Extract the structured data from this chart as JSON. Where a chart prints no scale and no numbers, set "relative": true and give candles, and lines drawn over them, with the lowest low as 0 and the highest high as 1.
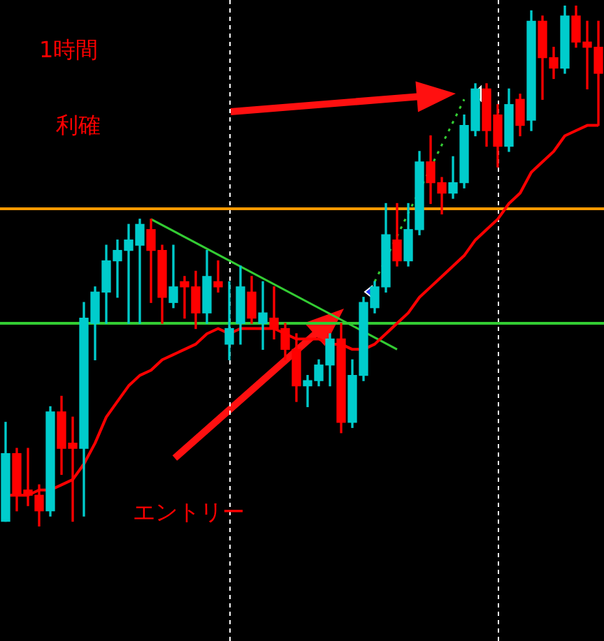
{
  "chart_data": {
    "type": "candlestick",
    "relative": true,
    "grid": false,
    "legend": false,
    "categories": [
      null,
      null,
      null,
      null,
      null,
      null,
      null,
      null,
      null,
      null,
      null,
      null,
      null,
      null,
      null,
      null,
      null,
      null,
      null,
      null,
      null,
      null,
      null,
      null,
      null,
      null,
      null,
      null,
      null,
      null,
      null,
      null,
      null,
      null,
      null,
      null,
      null,
      null,
      null,
      null,
      null,
      null,
      null,
      null,
      null,
      null,
      null,
      null,
      null,
      null,
      null,
      null,
      null,
      null
    ],
    "ohlc": [
      [
        0.01,
        0.2,
        0.01,
        0.14
      ],
      [
        0.14,
        0.15,
        0.03,
        0.06
      ],
      [
        0.07,
        0.15,
        0.04,
        0.06
      ],
      [
        0.06,
        0.08,
        0,
        0.03
      ],
      [
        0.03,
        0.23,
        0.02,
        0.22
      ],
      [
        0.22,
        0.25,
        0.1,
        0.15
      ],
      [
        0.16,
        0.21,
        0.01,
        0.15
      ],
      [
        0.15,
        0.43,
        0.02,
        0.4
      ],
      [
        0.39,
        0.46,
        0.32,
        0.45
      ],
      [
        0.45,
        0.54,
        0.39,
        0.51
      ],
      [
        0.51,
        0.55,
        0.44,
        0.53
      ],
      [
        0.53,
        0.58,
        0.39,
        0.55
      ],
      [
        0.54,
        0.59,
        0.39,
        0.58
      ],
      [
        0.57,
        0.59,
        0.43,
        0.53
      ],
      [
        0.53,
        0.54,
        0.39,
        0.44
      ],
      [
        0.43,
        0.54,
        0.42,
        0.46
      ],
      [
        0.47,
        0.48,
        0.4,
        0.46
      ],
      [
        0.46,
        0.49,
        0.38,
        0.41
      ],
      [
        0.41,
        0.53,
        0.39,
        0.48
      ],
      [
        0.47,
        0.51,
        0.45,
        0.46
      ],
      [
        0.35,
        0.47,
        0.32,
        0.38
      ],
      [
        0.39,
        0.5,
        0.35,
        0.46
      ],
      [
        0.45,
        0.48,
        0.39,
        0.4
      ],
      [
        0.39,
        0.47,
        0.34,
        0.41
      ],
      [
        0.4,
        0.46,
        0.36,
        0.38
      ],
      [
        0.38,
        0.39,
        0.32,
        0.34
      ],
      [
        0.34,
        0.37,
        0.24,
        0.27
      ],
      [
        0.27,
        0.29,
        0.23,
        0.28
      ],
      [
        0.28,
        0.32,
        0.27,
        0.31
      ],
      [
        0.31,
        0.37,
        0.27,
        0.36
      ],
      [
        0.36,
        0.39,
        0.18,
        0.2
      ],
      [
        0.2,
        0.32,
        0.19,
        0.29
      ],
      [
        0.29,
        0.44,
        0.28,
        0.43
      ],
      [
        0.42,
        0.47,
        0.41,
        0.46
      ],
      [
        0.46,
        0.62,
        0.45,
        0.56
      ],
      [
        0.55,
        0.62,
        0.5,
        0.51
      ],
      [
        0.51,
        0.62,
        0.5,
        0.57
      ],
      [
        0.57,
        0.72,
        0.56,
        0.7
      ],
      [
        0.7,
        0.75,
        0.62,
        0.66
      ],
      [
        0.66,
        0.67,
        0.6,
        0.64
      ],
      [
        0.64,
        0.71,
        0.63,
        0.66
      ],
      [
        0.66,
        0.79,
        0.65,
        0.77
      ],
      [
        0.76,
        0.85,
        0.75,
        0.84
      ],
      [
        0.84,
        0.85,
        0.73,
        0.76
      ],
      [
        0.79,
        0.81,
        0.69,
        0.73
      ],
      [
        0.73,
        0.84,
        0.72,
        0.81
      ],
      [
        0.82,
        0.83,
        0.75,
        0.77
      ],
      [
        0.78,
        0.99,
        0.76,
        0.97
      ],
      [
        0.97,
        0.98,
        0.82,
        0.9
      ],
      [
        0.9,
        0.92,
        0.86,
        0.88
      ],
      [
        0.88,
        1,
        0.87,
        0.98
      ],
      [
        0.98,
        1,
        0.92,
        0.93
      ],
      [
        0.93,
        0.97,
        0.84,
        0.92
      ],
      [
        0.92,
        0.97,
        0.77,
        0.87
      ]
    ],
    "series": [
      {
        "type": "line",
        "color": "#ff0000",
        "values": [
          0.06,
          0.06,
          0.06,
          0.07,
          0.07,
          0.08,
          0.09,
          0.12,
          0.16,
          0.21,
          0.24,
          0.27,
          0.29,
          0.3,
          0.32,
          0.33,
          0.34,
          0.35,
          0.37,
          0.38,
          0.37,
          0.38,
          0.38,
          0.38,
          0.38,
          0.37,
          0.36,
          0.36,
          0.36,
          0.35,
          0.35,
          0.34,
          0.34,
          0.35,
          0.37,
          0.39,
          0.41,
          0.44,
          0.46,
          0.48,
          0.5,
          0.52,
          0.55,
          0.57,
          0.59,
          0.62,
          0.64,
          0.68,
          0.7,
          0.72,
          0.75,
          0.76,
          0.77,
          0.77
        ]
      },
      {
        "type": "line",
        "color": "#33cc33",
        "line_style": "solid",
        "values": [
          null,
          null,
          null,
          null,
          null,
          null,
          null,
          null,
          null,
          null,
          null,
          null,
          null,
          0.59,
          null,
          null,
          null,
          null,
          null,
          null,
          null,
          null,
          null,
          null,
          null,
          null,
          null,
          null,
          null,
          null,
          null,
          null,
          null,
          null,
          null,
          0.34,
          null,
          null,
          null,
          null,
          null,
          null,
          null,
          null,
          null,
          null,
          null,
          null,
          null,
          null,
          null,
          null,
          null,
          null
        ]
      },
      {
        "type": "line",
        "color": "#33cc33",
        "line_style": "dotted",
        "values": [
          null,
          null,
          null,
          null,
          null,
          null,
          null,
          null,
          null,
          null,
          null,
          null,
          null,
          null,
          null,
          null,
          null,
          null,
          null,
          null,
          null,
          null,
          null,
          null,
          null,
          null,
          null,
          null,
          null,
          null,
          null,
          null,
          null,
          0.47,
          null,
          null,
          null,
          null,
          null,
          null,
          null,
          0.82,
          null,
          null,
          null,
          null,
          null,
          null,
          null,
          null,
          null,
          null,
          null,
          null
        ]
      }
    ],
    "ref_lines": [
      {
        "axis": "y",
        "value": 0.61,
        "color": "#ff9900"
      },
      {
        "axis": "y",
        "value": 0.39,
        "color": "#33cc33"
      }
    ],
    "annotations": [
      "1時間",
      "利確",
      "エントリー"
    ]
  }
}
